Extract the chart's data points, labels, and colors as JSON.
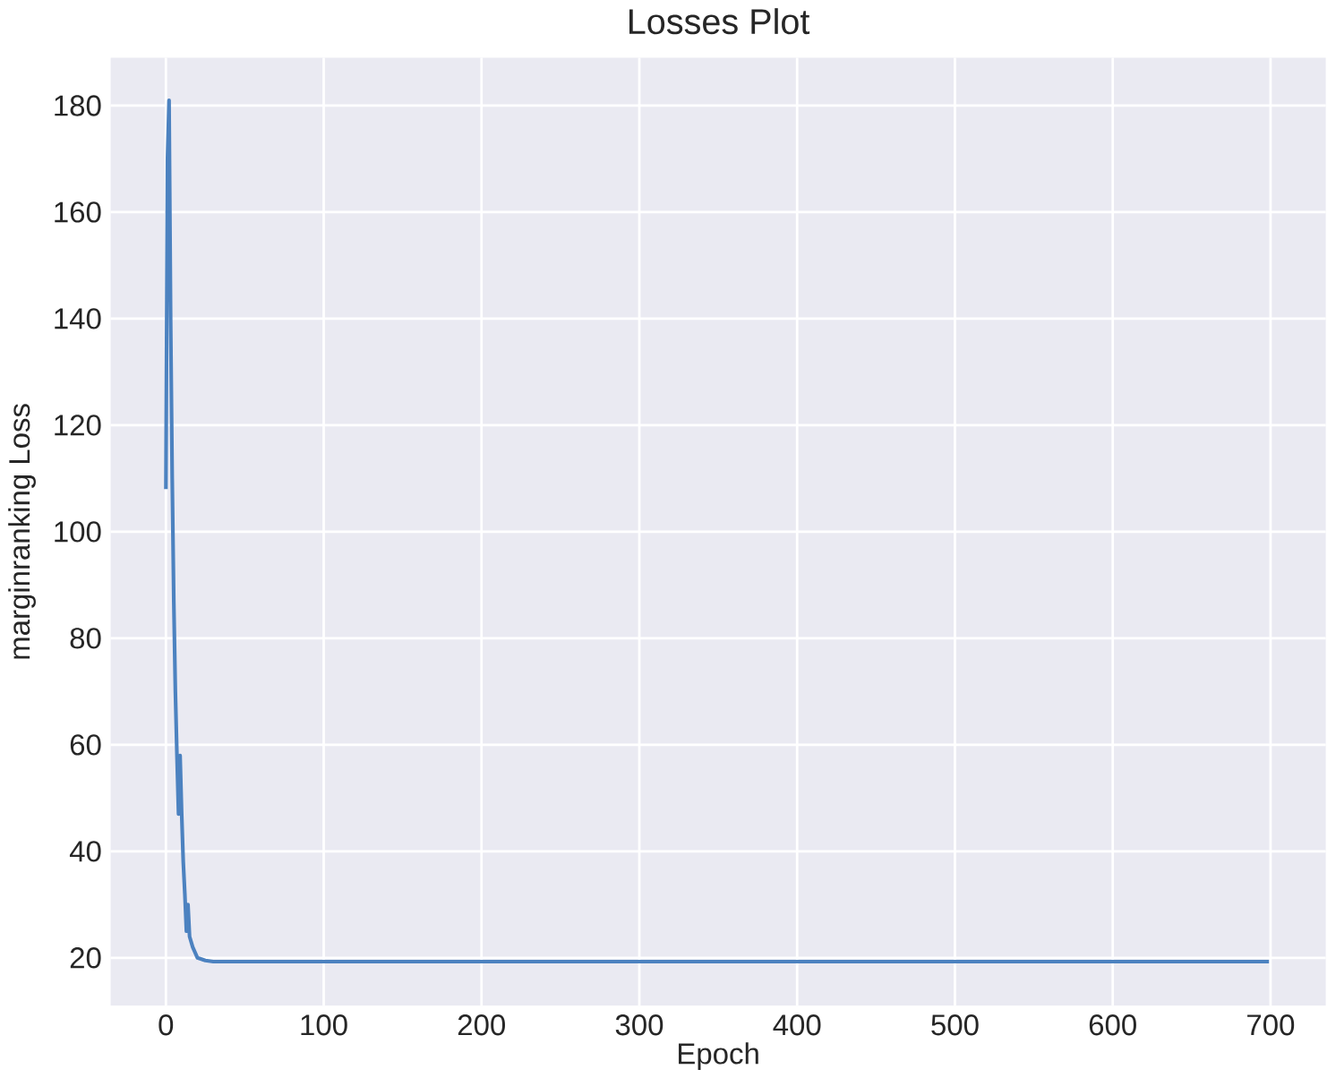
{
  "chart_data": {
    "type": "line",
    "title": "Losses Plot",
    "xlabel": "Epoch",
    "ylabel": "marginranking Loss",
    "x": [
      0,
      1,
      2,
      3,
      4,
      5,
      6,
      7,
      8,
      9,
      10,
      11,
      12,
      13,
      14,
      15,
      17,
      20,
      25,
      30,
      50,
      100,
      200,
      300,
      400,
      500,
      600,
      699
    ],
    "series": [
      {
        "color": "#4c82c0",
        "values": [
          108,
          170,
          181,
          140,
          110,
          87,
          70,
          58,
          47,
          58,
          47,
          38,
          32,
          25,
          30,
          24,
          22,
          20,
          19.5,
          19.3,
          19.3,
          19.3,
          19.3,
          19.3,
          19.3,
          19.3,
          19.3,
          19.3
        ]
      }
    ],
    "xlim": [
      -35,
      735
    ],
    "ylim": [
      11,
      189
    ],
    "xticks": [
      0,
      100,
      200,
      300,
      400,
      500,
      600,
      700
    ],
    "yticks": [
      20,
      40,
      60,
      80,
      100,
      120,
      140,
      160,
      180
    ],
    "grid": true
  }
}
